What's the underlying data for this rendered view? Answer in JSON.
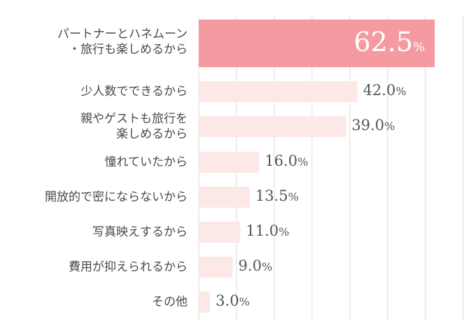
{
  "chart_data": {
    "type": "bar",
    "orientation": "horizontal",
    "categories": [
      "パートナーとハネムーン\n・旅行も楽しめるから",
      "少人数でできるから",
      "親やゲストも旅行を\n楽しめるから",
      "憧れていたから",
      "開放的で密にならないから",
      "写真映えするから",
      "費用が抑えられるから",
      "その他"
    ],
    "values": [
      62.5,
      42.0,
      39.0,
      16.0,
      13.5,
      11.0,
      9.0,
      3.0
    ],
    "value_labels": [
      {
        "num": "62.5",
        "unit": "%"
      },
      {
        "num": "42.0",
        "unit": "%"
      },
      {
        "num": "39.0",
        "unit": "%"
      },
      {
        "num": "16.0",
        "unit": "%"
      },
      {
        "num": "13.5",
        "unit": "%"
      },
      {
        "num": "11.0",
        "unit": "%"
      },
      {
        "num": "9.0",
        "unit": "%"
      },
      {
        "num": "3.0",
        "unit": "%"
      }
    ],
    "xlim": [
      0,
      70
    ],
    "grid": true,
    "colors": {
      "highlight_bar": "#f6959c",
      "bar": "#fde8e8",
      "grid": "#dddddd",
      "highlight_value_text": "#ffffff",
      "value_text": "#555555",
      "category_text": "#4a4a4a"
    }
  }
}
